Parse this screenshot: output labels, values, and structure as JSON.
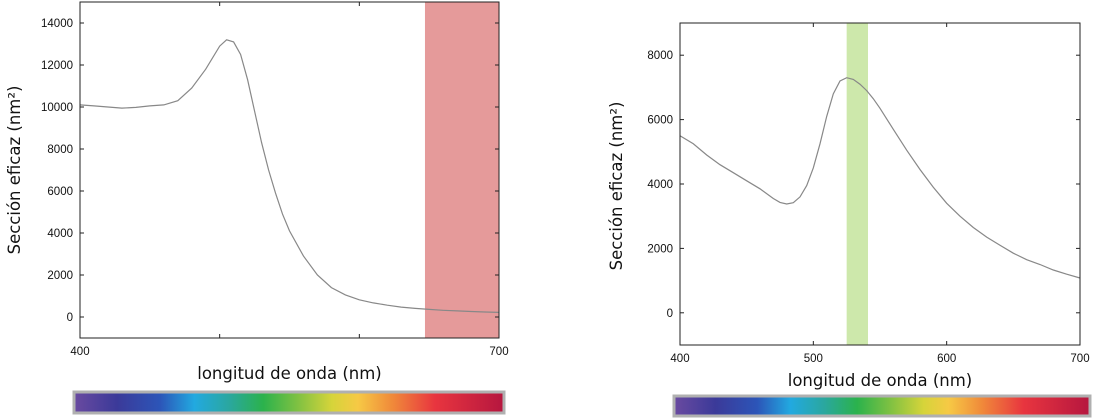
{
  "chart_data": [
    {
      "type": "line",
      "xlabel": "longitud de onda (nm)",
      "ylabel": "Sección eficaz (nm²)",
      "xlim": [
        400,
        700
      ],
      "ylim": [
        -1000,
        15000
      ],
      "xticks": [
        400,
        500,
        600,
        700
      ],
      "xtick_labels": [
        "400",
        "",
        "",
        "700"
      ],
      "yticks": [
        0,
        2000,
        4000,
        6000,
        8000,
        10000,
        12000,
        14000
      ],
      "ytick_labels": [
        "0",
        "2000",
        "4000",
        "6000",
        "8000",
        "10000",
        "12000",
        "14000"
      ],
      "grid": false,
      "series": [
        {
          "color": "#888888",
          "x": [
            400,
            410,
            420,
            430,
            440,
            450,
            460,
            470,
            480,
            490,
            500,
            505,
            510,
            515,
            520,
            525,
            530,
            535,
            540,
            545,
            550,
            560,
            570,
            580,
            590,
            600,
            610,
            620,
            630,
            640,
            650,
            660,
            670,
            680,
            690,
            700
          ],
          "y": [
            10100,
            10050,
            10000,
            9950,
            9980,
            10050,
            10100,
            10300,
            10900,
            11800,
            12900,
            13200,
            13100,
            12500,
            11300,
            9800,
            8300,
            7000,
            5900,
            4900,
            4100,
            2900,
            2000,
            1400,
            1050,
            820,
            670,
            560,
            470,
            410,
            360,
            320,
            290,
            260,
            240,
            220
          ]
        }
      ],
      "highlight_band": {
        "x_range": [
          647,
          700
        ],
        "color": "#e59a9a"
      },
      "spectrum_bar": {
        "range": [
          400,
          700
        ]
      }
    },
    {
      "type": "line",
      "xlabel": "longitud de onda (nm)",
      "ylabel": "Sección eficaz (nm²)",
      "xlim": [
        400,
        700
      ],
      "ylim": [
        -1000,
        9000
      ],
      "xticks": [
        400,
        500,
        600,
        700
      ],
      "xtick_labels": [
        "400",
        "500",
        "600",
        "700"
      ],
      "yticks": [
        0,
        2000,
        4000,
        6000,
        8000
      ],
      "ytick_labels": [
        "0",
        "2000",
        "4000",
        "6000",
        "8000"
      ],
      "grid": false,
      "series": [
        {
          "color": "#888888",
          "x": [
            400,
            410,
            420,
            430,
            440,
            450,
            460,
            470,
            475,
            480,
            485,
            490,
            495,
            500,
            505,
            510,
            515,
            520,
            525,
            530,
            535,
            540,
            545,
            550,
            560,
            570,
            580,
            590,
            600,
            610,
            620,
            630,
            640,
            650,
            660,
            670,
            680,
            690,
            700
          ],
          "y": [
            5500,
            5250,
            4900,
            4600,
            4350,
            4100,
            3850,
            3550,
            3430,
            3380,
            3420,
            3600,
            3950,
            4500,
            5250,
            6100,
            6800,
            7200,
            7300,
            7250,
            7100,
            6900,
            6650,
            6350,
            5700,
            5050,
            4450,
            3900,
            3400,
            3000,
            2650,
            2350,
            2100,
            1850,
            1650,
            1500,
            1330,
            1200,
            1080
          ]
        }
      ],
      "highlight_band": {
        "x_range": [
          525,
          541
        ],
        "color": "#cde8ab"
      },
      "spectrum_bar": {
        "range": [
          400,
          700
        ]
      }
    }
  ]
}
